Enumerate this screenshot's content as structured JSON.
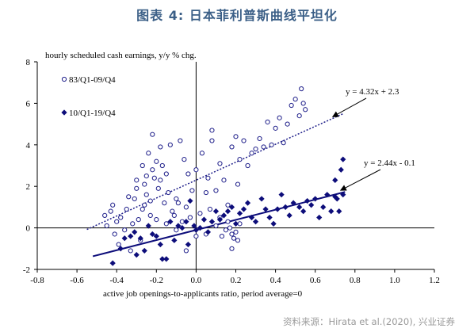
{
  "header": {
    "title": "图表 4:  日本菲利普斯曲线平坦化"
  },
  "footer": {
    "source": "资料来源：Hirata et al.(2020),  兴业证券"
  },
  "chart_data": {
    "type": "scatter",
    "ylabel": "hourly scheduled cash earnings, y/y % chg.",
    "xlabel": "active job openings-to-applicants ratio, period average=0",
    "xlim": [
      -0.8,
      1.2
    ],
    "ylim": [
      -2,
      8
    ],
    "xticks": [
      "-0.8",
      "-0.6",
      "-0.4",
      "-0.2",
      "0.0",
      "0.2",
      "0.4",
      "0.6",
      "0.8",
      "1.0",
      "1.2"
    ],
    "yticks": [
      "-2",
      "0",
      "2",
      "4",
      "6",
      "8"
    ],
    "legend_position": "top-left",
    "series": [
      {
        "name": "83/Q1-09/Q4",
        "marker": "open-circle",
        "color": "#1f1f8a",
        "points": [
          [
            -0.46,
            0.6
          ],
          [
            -0.45,
            0.1
          ],
          [
            -0.43,
            0.8
          ],
          [
            -0.42,
            1.1
          ],
          [
            -0.41,
            -0.3
          ],
          [
            -0.4,
            0.3
          ],
          [
            -0.39,
            -0.8
          ],
          [
            -0.38,
            0.5
          ],
          [
            -0.36,
            -0.1
          ],
          [
            -0.35,
            0.9
          ],
          [
            -0.34,
            1.5
          ],
          [
            -0.33,
            -1.1
          ],
          [
            -0.32,
            0.2
          ],
          [
            -0.31,
            1.4
          ],
          [
            -0.3,
            1.9
          ],
          [
            -0.3,
            2.3
          ],
          [
            -0.29,
            0.4
          ],
          [
            -0.28,
            -0.6
          ],
          [
            -0.27,
            0.9
          ],
          [
            -0.27,
            3.0
          ],
          [
            -0.26,
            1.1
          ],
          [
            -0.26,
            2.1
          ],
          [
            -0.25,
            1.6
          ],
          [
            -0.25,
            2.5
          ],
          [
            -0.24,
            3.6
          ],
          [
            -0.23,
            0.6
          ],
          [
            -0.23,
            1.3
          ],
          [
            -0.22,
            2.8
          ],
          [
            -0.22,
            4.5
          ],
          [
            -0.21,
            2.4
          ],
          [
            -0.2,
            3.2
          ],
          [
            -0.2,
            0.4
          ],
          [
            -0.19,
            1.9
          ],
          [
            -0.18,
            2.3
          ],
          [
            -0.18,
            3.9
          ],
          [
            -0.17,
            3.0
          ],
          [
            -0.16,
            1.2
          ],
          [
            -0.15,
            2.6
          ],
          [
            -0.15,
            0.2
          ],
          [
            -0.14,
            1.7
          ],
          [
            -0.13,
            4.0
          ],
          [
            -0.12,
            0.8
          ],
          [
            -0.11,
            0.6
          ],
          [
            -0.1,
            -0.1
          ],
          [
            -0.09,
            1.2
          ],
          [
            -0.08,
            4.2
          ],
          [
            -0.07,
            0.3
          ],
          [
            -0.06,
            3.3
          ],
          [
            -0.05,
            1.0
          ],
          [
            -0.04,
            2.6
          ],
          [
            -0.03,
            0.5
          ],
          [
            -0.02,
            1.8
          ],
          [
            0.0,
            2.8
          ],
          [
            0.02,
            0.7
          ],
          [
            0.03,
            3.6
          ],
          [
            0.05,
            1.7
          ],
          [
            0.06,
            2.4
          ],
          [
            0.07,
            0.9
          ],
          [
            0.08,
            4.2
          ],
          [
            0.1,
            1.8
          ],
          [
            0.12,
            3.1
          ],
          [
            0.14,
            2.3
          ],
          [
            0.16,
            1.1
          ],
          [
            0.18,
            3.9
          ],
          [
            0.2,
            4.4
          ],
          [
            0.21,
            2.1
          ],
          [
            0.22,
            3.3
          ],
          [
            0.24,
            4.2
          ],
          [
            0.26,
            3.0
          ],
          [
            0.28,
            3.6
          ],
          [
            0.3,
            3.8
          ],
          [
            0.32,
            4.3
          ],
          [
            0.34,
            3.9
          ],
          [
            0.36,
            5.1
          ],
          [
            0.38,
            4.0
          ],
          [
            0.4,
            4.8
          ],
          [
            0.42,
            5.3
          ],
          [
            0.44,
            4.1
          ],
          [
            0.46,
            5.0
          ],
          [
            0.48,
            5.9
          ],
          [
            0.5,
            6.2
          ],
          [
            0.52,
            5.4
          ],
          [
            0.53,
            6.7
          ],
          [
            0.54,
            6.0
          ],
          [
            0.55,
            5.7
          ],
          [
            0.08,
            4.7
          ],
          [
            0.16,
            0.3
          ],
          [
            0.17,
            0.0
          ],
          [
            0.18,
            -0.3
          ],
          [
            0.19,
            -0.5
          ],
          [
            0.2,
            -0.2
          ],
          [
            0.21,
            -0.6
          ],
          [
            0.22,
            0.2
          ],
          [
            0.15,
            -0.1
          ],
          [
            0.12,
            0.5
          ],
          [
            0.13,
            -0.4
          ],
          [
            0.18,
            -1.0
          ],
          [
            0.1,
            0.1
          ],
          [
            0.0,
            -0.4
          ],
          [
            -0.05,
            -1.1
          ],
          [
            -0.1,
            1.4
          ],
          [
            0.05,
            -0.3
          ]
        ]
      },
      {
        "name": "10/Q1-19/Q4",
        "marker": "filled-diamond",
        "color": "#0d0d7a",
        "points": [
          [
            -0.42,
            -1.7
          ],
          [
            -0.38,
            -1.0
          ],
          [
            -0.36,
            -0.5
          ],
          [
            -0.33,
            -0.4
          ],
          [
            -0.31,
            -0.2
          ],
          [
            -0.3,
            -1.3
          ],
          [
            -0.28,
            -0.5
          ],
          [
            -0.26,
            -1.1
          ],
          [
            -0.24,
            0.1
          ],
          [
            -0.22,
            -0.3
          ],
          [
            -0.2,
            -0.4
          ],
          [
            -0.18,
            -0.8
          ],
          [
            -0.17,
            -1.5
          ],
          [
            -0.15,
            -1.5
          ],
          [
            -0.13,
            0.3
          ],
          [
            -0.11,
            -0.6
          ],
          [
            -0.09,
            0.1
          ],
          [
            -0.07,
            0.0
          ],
          [
            -0.05,
            0.3
          ],
          [
            -0.04,
            -0.8
          ],
          [
            -0.03,
            1.3
          ],
          [
            -0.01,
            0.1
          ],
          [
            0.0,
            -0.1
          ],
          [
            0.02,
            0.0
          ],
          [
            0.04,
            0.4
          ],
          [
            0.06,
            -0.2
          ],
          [
            0.08,
            0.3
          ],
          [
            0.1,
            0.8
          ],
          [
            0.12,
            0.4
          ],
          [
            0.14,
            0.6
          ],
          [
            0.16,
            0.8
          ],
          [
            0.18,
            1.0
          ],
          [
            0.2,
            0.2
          ],
          [
            0.22,
            0.7
          ],
          [
            0.24,
            0.9
          ],
          [
            0.26,
            1.2
          ],
          [
            0.28,
            0.5
          ],
          [
            0.3,
            0.3
          ],
          [
            0.33,
            1.4
          ],
          [
            0.35,
            0.9
          ],
          [
            0.37,
            0.5
          ],
          [
            0.39,
            0.2
          ],
          [
            0.41,
            0.9
          ],
          [
            0.43,
            1.6
          ],
          [
            0.45,
            1.0
          ],
          [
            0.47,
            0.6
          ],
          [
            0.49,
            1.2
          ],
          [
            0.52,
            1.0
          ],
          [
            0.54,
            0.8
          ],
          [
            0.56,
            1.3
          ],
          [
            0.58,
            1.1
          ],
          [
            0.6,
            1.4
          ],
          [
            0.62,
            0.5
          ],
          [
            0.64,
            1.0
          ],
          [
            0.66,
            1.6
          ],
          [
            0.68,
            0.8
          ],
          [
            0.7,
            2.3
          ],
          [
            0.71,
            1.4
          ],
          [
            0.72,
            0.8
          ],
          [
            0.73,
            2.8
          ],
          [
            0.74,
            1.6
          ],
          [
            0.74,
            3.3
          ],
          [
            0.7,
            1.5
          ]
        ]
      }
    ],
    "trendlines": [
      {
        "series": "83/Q1-09/Q4",
        "style": "dotted",
        "x_range": [
          -0.55,
          0.74
        ],
        "slope": 4.32,
        "intercept": 2.3,
        "label": "y = 4.32x + 2.3"
      },
      {
        "series": "10/Q1-19/Q4",
        "style": "solid",
        "x_range": [
          -0.52,
          0.75
        ],
        "slope": 2.44,
        "intercept": -0.1,
        "label": "y = 2.44x - 0.1"
      }
    ]
  }
}
